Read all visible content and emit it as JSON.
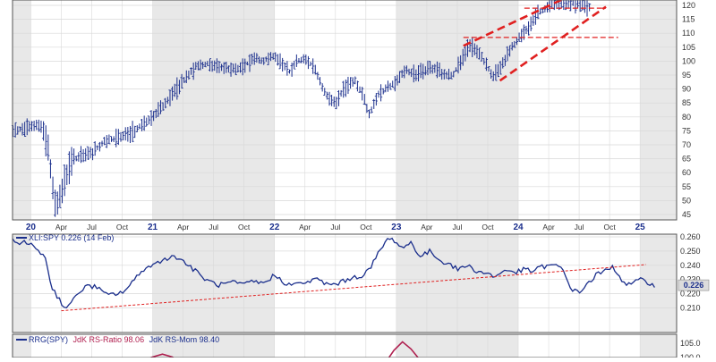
{
  "chart_data": [
    {
      "type": "bar",
      "style": "ohlc-weekly",
      "title": "",
      "xlabel": "",
      "ylabel": "",
      "ylim": [
        42,
        124
      ],
      "y_ticks": [
        45,
        50,
        55,
        60,
        65,
        70,
        75,
        80,
        85,
        90,
        95,
        100,
        105,
        110,
        115,
        120
      ],
      "x_range": [
        2019.85,
        2025.3
      ],
      "x_ticks": [
        {
          "t": 2020.0,
          "label": "20",
          "year": true
        },
        {
          "t": 2020.25,
          "label": "Apr",
          "year": false
        },
        {
          "t": 2020.5,
          "label": "Jul",
          "year": false
        },
        {
          "t": 2020.75,
          "label": "Oct",
          "year": false
        },
        {
          "t": 2021.0,
          "label": "21",
          "year": true
        },
        {
          "t": 2021.25,
          "label": "Apr",
          "year": false
        },
        {
          "t": 2021.5,
          "label": "Jul",
          "year": false
        },
        {
          "t": 2021.75,
          "label": "Oct",
          "year": false
        },
        {
          "t": 2022.0,
          "label": "22",
          "year": true
        },
        {
          "t": 2022.25,
          "label": "Apr",
          "year": false
        },
        {
          "t": 2022.5,
          "label": "Jul",
          "year": false
        },
        {
          "t": 2022.75,
          "label": "Oct",
          "year": false
        },
        {
          "t": 2023.0,
          "label": "23",
          "year": true
        },
        {
          "t": 2023.25,
          "label": "Apr",
          "year": false
        },
        {
          "t": 2023.5,
          "label": "Jul",
          "year": false
        },
        {
          "t": 2023.75,
          "label": "Oct",
          "year": false
        },
        {
          "t": 2024.0,
          "label": "24",
          "year": true
        },
        {
          "t": 2024.25,
          "label": "Apr",
          "year": false
        },
        {
          "t": 2024.5,
          "label": "Jul",
          "year": false
        },
        {
          "t": 2024.75,
          "label": "Oct",
          "year": false
        },
        {
          "t": 2025.0,
          "label": "25",
          "year": true
        }
      ],
      "price_anchors": [
        [
          2019.85,
          75
        ],
        [
          2020.0,
          77
        ],
        [
          2020.08,
          77
        ],
        [
          2020.14,
          70
        ],
        [
          2020.18,
          55
        ],
        [
          2020.21,
          47
        ],
        [
          2020.25,
          54
        ],
        [
          2020.35,
          65
        ],
        [
          2020.5,
          67
        ],
        [
          2020.6,
          71
        ],
        [
          2020.75,
          73
        ],
        [
          2020.85,
          75
        ],
        [
          2021.0,
          80
        ],
        [
          2021.1,
          85
        ],
        [
          2021.25,
          93
        ],
        [
          2021.35,
          98
        ],
        [
          2021.45,
          99
        ],
        [
          2021.55,
          98
        ],
        [
          2021.65,
          97
        ],
        [
          2021.75,
          98
        ],
        [
          2021.82,
          101
        ],
        [
          2021.9,
          100
        ],
        [
          2022.0,
          102
        ],
        [
          2022.05,
          100
        ],
        [
          2022.12,
          96
        ],
        [
          2022.18,
          100
        ],
        [
          2022.25,
          101
        ],
        [
          2022.32,
          98
        ],
        [
          2022.42,
          88
        ],
        [
          2022.5,
          85
        ],
        [
          2022.58,
          91
        ],
        [
          2022.66,
          93
        ],
        [
          2022.72,
          88
        ],
        [
          2022.78,
          81
        ],
        [
          2022.85,
          88
        ],
        [
          2023.0,
          93
        ],
        [
          2023.08,
          97
        ],
        [
          2023.15,
          95
        ],
        [
          2023.25,
          97
        ],
        [
          2023.32,
          97
        ],
        [
          2023.4,
          95
        ],
        [
          2023.46,
          95
        ],
        [
          2023.52,
          99
        ],
        [
          2023.6,
          106
        ],
        [
          2023.66,
          104
        ],
        [
          2023.72,
          100
        ],
        [
          2023.8,
          94
        ],
        [
          2023.86,
          98
        ],
        [
          2023.92,
          103
        ],
        [
          2024.0,
          108
        ],
        [
          2024.08,
          112
        ],
        [
          2024.16,
          117
        ],
        [
          2024.25,
          120
        ],
        [
          2024.35,
          121
        ],
        [
          2024.45,
          121
        ],
        [
          2024.55,
          120
        ],
        [
          2024.6,
          119
        ]
      ],
      "annotations": {
        "channel_upper": {
          "from": [
            2023.55,
            105.5
          ],
          "to": [
            2024.55,
            126
          ]
        },
        "channel_lower": {
          "from": [
            2023.85,
            93
          ],
          "to": [
            2024.72,
            119.5
          ]
        },
        "resistance_1": {
          "y": 108.5,
          "from": 2023.55,
          "to": 2024.82
        },
        "resistance_2": {
          "y": 119,
          "from": 2024.05,
          "to": 2024.72
        }
      },
      "colors": {
        "price": "#1a2e8c",
        "annotation": "#e02020",
        "grid": "#d9d9d9",
        "shade": "#e8e8e8"
      }
    },
    {
      "type": "line",
      "title": "XLI:SPY 0.226 (14 Feb)",
      "series": [
        {
          "name": "XLI:SPY",
          "last": "0.226"
        }
      ],
      "ylim": [
        0.204,
        0.264
      ],
      "y_ticks": [
        "0.210",
        "0.220",
        "0.230",
        "0.240",
        "0.250",
        "0.260"
      ],
      "x_range": [
        2019.85,
        2025.3
      ],
      "ratio_anchors": [
        [
          2019.85,
          0.257
        ],
        [
          2019.95,
          0.256
        ],
        [
          2020.05,
          0.252
        ],
        [
          2020.12,
          0.245
        ],
        [
          2020.17,
          0.225
        ],
        [
          2020.22,
          0.218
        ],
        [
          2020.28,
          0.21
        ],
        [
          2020.34,
          0.214
        ],
        [
          2020.4,
          0.222
        ],
        [
          2020.48,
          0.226
        ],
        [
          2020.55,
          0.224
        ],
        [
          2020.62,
          0.219
        ],
        [
          2020.7,
          0.22
        ],
        [
          2020.75,
          0.221
        ],
        [
          2020.82,
          0.226
        ],
        [
          2020.9,
          0.236
        ],
        [
          2021.0,
          0.24
        ],
        [
          2021.1,
          0.245
        ],
        [
          2021.2,
          0.246
        ],
        [
          2021.25,
          0.243
        ],
        [
          2021.35,
          0.236
        ],
        [
          2021.45,
          0.229
        ],
        [
          2021.55,
          0.226
        ],
        [
          2021.65,
          0.228
        ],
        [
          2021.75,
          0.226
        ],
        [
          2021.82,
          0.229
        ],
        [
          2021.9,
          0.227
        ],
        [
          2022.0,
          0.233
        ],
        [
          2022.08,
          0.228
        ],
        [
          2022.15,
          0.226
        ],
        [
          2022.25,
          0.228
        ],
        [
          2022.35,
          0.23
        ],
        [
          2022.45,
          0.226
        ],
        [
          2022.55,
          0.228
        ],
        [
          2022.62,
          0.231
        ],
        [
          2022.7,
          0.232
        ],
        [
          2022.78,
          0.237
        ],
        [
          2022.85,
          0.248
        ],
        [
          2022.92,
          0.258
        ],
        [
          2022.98,
          0.258
        ],
        [
          2023.05,
          0.252
        ],
        [
          2023.12,
          0.256
        ],
        [
          2023.2,
          0.246
        ],
        [
          2023.28,
          0.25
        ],
        [
          2023.36,
          0.243
        ],
        [
          2023.42,
          0.242
        ],
        [
          2023.5,
          0.237
        ],
        [
          2023.58,
          0.24
        ],
        [
          2023.66,
          0.236
        ],
        [
          2023.75,
          0.234
        ],
        [
          2023.82,
          0.232
        ],
        [
          2023.9,
          0.237
        ],
        [
          2023.98,
          0.235
        ],
        [
          2024.05,
          0.237
        ],
        [
          2024.12,
          0.236
        ],
        [
          2024.2,
          0.239
        ],
        [
          2024.28,
          0.24
        ],
        [
          2024.36,
          0.238
        ],
        [
          2024.4,
          0.23
        ],
        [
          2024.45,
          0.222
        ],
        [
          2024.5,
          0.221
        ],
        [
          2024.58,
          0.228
        ],
        [
          2024.65,
          0.234
        ],
        [
          2024.72,
          0.236
        ],
        [
          2024.78,
          0.239
        ],
        [
          2024.84,
          0.231
        ],
        [
          2024.9,
          0.226
        ],
        [
          2024.96,
          0.228
        ],
        [
          2025.02,
          0.23
        ],
        [
          2025.12,
          0.226
        ]
      ],
      "annotations": {
        "support": {
          "from": [
            2020.25,
            0.208
          ],
          "to": [
            2025.05,
            0.2405
          ]
        }
      },
      "colors": {
        "line": "#1a2e8c",
        "annotation": "#e02020",
        "grid": "#d9d9d9",
        "shade": "#e8e8e8",
        "last_badge": "#dcdcdc"
      }
    },
    {
      "type": "line",
      "title_parts": [
        {
          "text": "RRG(SPY)",
          "color": "#1a2e8c"
        },
        {
          "text": "JdK RS-Ratio 98.06",
          "color": "#b02050"
        },
        {
          "text": "JdK RS-Mom 98.40",
          "color": "#1a2e8c"
        }
      ],
      "y_ticks": [
        "105.0",
        "100.0"
      ],
      "ylim": [
        98.8,
        110
      ],
      "x_range": [
        2019.85,
        2025.3
      ],
      "visible_anchors": [
        [
          2020.9,
          98.8
        ],
        [
          2021.0,
          100.2
        ],
        [
          2021.08,
          101.2
        ],
        [
          2021.16,
          100.2
        ],
        [
          2021.22,
          98.8
        ],
        [
          2022.92,
          98.8
        ],
        [
          2022.98,
          102.5
        ],
        [
          2023.05,
          105.5
        ],
        [
          2023.12,
          103.0
        ],
        [
          2023.2,
          98.8
        ]
      ],
      "colors": {
        "line": "#b02050",
        "grid": "#d9d9d9",
        "shade": "#e8e8e8"
      }
    }
  ]
}
